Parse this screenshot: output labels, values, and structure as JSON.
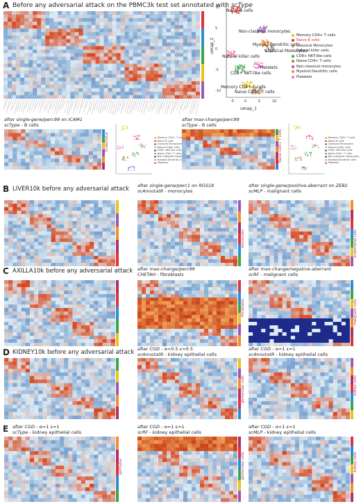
{
  "panelA": {
    "letter": "A",
    "title_prefix": "Before any adversarial attack on the PBMC3k test set annotated with ",
    "title_tool": "scType",
    "umap": {
      "xlabel": "umap_1",
      "ylabel": "umap_2",
      "xticks": [
        "-5",
        "0",
        "5",
        "10"
      ],
      "yticks": [
        "10",
        "5",
        "0",
        "-5",
        "-10"
      ],
      "clusters": [
        "Naive B cells",
        "Non-classical monocytes",
        "Myeloid Dendritic cells",
        "Classical Monocytes",
        "Natural killer  cells",
        "Platelets",
        "CD8+ NKT-like cells",
        "Memory CD4+ T cells",
        "Naive CD4+ T cells"
      ]
    },
    "legend": [
      {
        "label": "Memory CD4+ T cells",
        "color": "#e9c421"
      },
      {
        "label": "Naive B cells",
        "color": "#e0323a"
      },
      {
        "label": "Classical Monocytes",
        "color": "#8b8b8b"
      },
      {
        "label": "Natural killer  cells",
        "color": "#ee82b4"
      },
      {
        "label": "CD8+ NKT-like cells",
        "color": "#3aa54a"
      },
      {
        "label": "Naive CD4+ T cells",
        "color": "#b07a3b"
      },
      {
        "label": "Non-classical monocytes",
        "color": "#9b59b6"
      },
      {
        "label": "Myeloid Dendritic cells",
        "color": "#f28e2b"
      },
      {
        "label": "Platelets",
        "color": "#e377c2"
      }
    ],
    "sub1": {
      "prefix": "after ",
      "method": "single-gene/perc99",
      "mid": " on ",
      "gene": "ICAM1",
      "line2_tool": "scType",
      "line2_rest": " - B cells"
    },
    "sub1_side": "Endothelial",
    "sub2": {
      "prefix": "after ",
      "method": "max-change/perc99",
      "line2_tool": "scType",
      "line2_rest": " - B cells"
    },
    "sub2_side": "Naive CD4+ T cells"
  },
  "panelB": {
    "letter": "B",
    "title": "LIVER10k before any adversarial attack",
    "c2": {
      "prefix": "after ",
      "method": "single-gene/perc1",
      "mid": " on ",
      "gene": "RGS18",
      "tool": "scAnnotatR",
      "rest": " - monocytes"
    },
    "c2_side": "monocytes",
    "c3": {
      "prefix": "after ",
      "method": "single-gene/positive-aberrant",
      "mid": " on ",
      "gene": "ZEB2",
      "tool": "scMLP",
      "rest": " - malignant cells"
    },
    "c3_side": "endothelial cells"
  },
  "panelC": {
    "letter": "C",
    "title": "AXILLA10k before any adversarial attack",
    "c2": {
      "prefix": "after ",
      "method": "max-change/perc99",
      "tool": "CHETAH",
      "rest": " - fibroblasts"
    },
    "c2_side": "fibroblasts",
    "c3": {
      "prefix": "after ",
      "method": "max-change/negative-aberrant",
      "tool": "scRF",
      "rest": " - malignant cells"
    },
    "c3_side": "malignant cells"
  },
  "panelD": {
    "letter": "D",
    "title": "KIDNEY10k before any adversarial attack",
    "c2": {
      "prefix": "after ",
      "method": "CGD",
      "rest1": " - α=0.5 ε=0.5",
      "tool": "scAnnotatR",
      "rest": " - kidney epithelial cells"
    },
    "c2_side": "glomerular cells",
    "c3": {
      "prefix": "after ",
      "method": "CGD",
      "rest1": " - α=1 ε=1",
      "tool": "scAnnotatR",
      "rest": " - kidney epithelial cells"
    },
    "c3_side": "kidney cells"
  },
  "panelE": {
    "letter": "E",
    "c1": {
      "prefix": "after ",
      "method": "CGD",
      "rest1": " - α=1 ε=1",
      "tool": "scType",
      "rest": " - kidney epithelial cells"
    },
    "c1_side": "epithelial",
    "c2": {
      "prefix": "after ",
      "method": "CGD",
      "rest1": " - α=1 ε=1",
      "tool": "scRF",
      "rest": " - kidney epithelial cells"
    },
    "c2_side": "glomerular cells",
    "c3": {
      "prefix": "after ",
      "method": "CGD",
      "rest1": " - α=1 ε=1",
      "tool": "scMLP",
      "rest": " - kidney epithelial cells"
    },
    "c3_side": "kidney cells"
  },
  "heatmap_colors": {
    "low": "#3a73b8",
    "mid": "#dcebf4",
    "high": "#d9481f",
    "bg": "#c8ddee"
  }
}
